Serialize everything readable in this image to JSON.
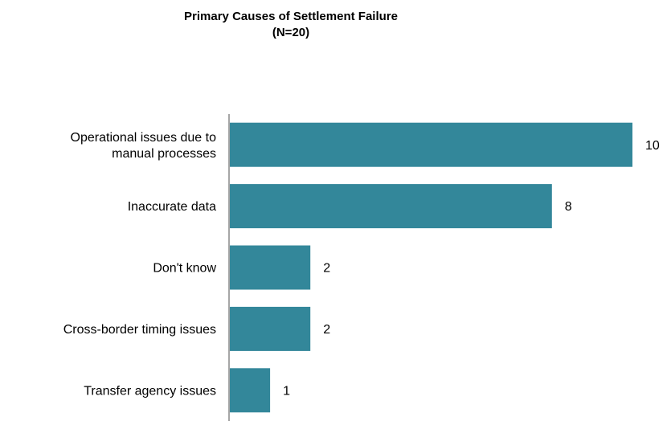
{
  "chart_data": {
    "type": "bar",
    "orientation": "horizontal",
    "title": "Primary Causes of Settlement Failure",
    "subtitle": "(N=20)",
    "categories": [
      [
        "Operational issues due to",
        "manual processes"
      ],
      [
        "Inaccurate data"
      ],
      [
        "Don't know"
      ],
      [
        "Cross-border timing issues"
      ],
      [
        "Transfer agency issues"
      ]
    ],
    "values": [
      10,
      8,
      2,
      2,
      1
    ],
    "xlim": [
      0,
      10
    ],
    "grid": false,
    "legend": "none",
    "data_labels": true,
    "bar_color": "#33879A",
    "axis_color": "#888888"
  }
}
